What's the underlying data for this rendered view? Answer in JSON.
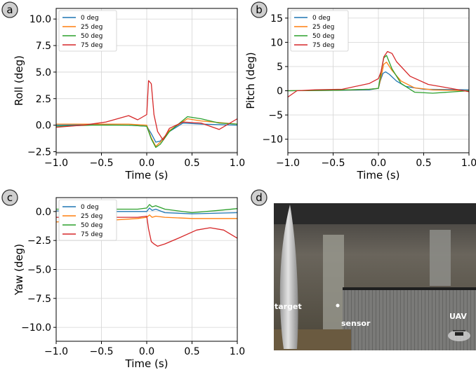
{
  "colors": {
    "blue": "#1f77b4",
    "orange": "#ff7f0e",
    "green": "#2ca02c",
    "red": "#d62728",
    "grid": "#d9d9d9"
  },
  "chart_data": [
    {
      "panel": "a",
      "type": "line",
      "xlabel": "Time (s)",
      "ylabel": "Roll (deg)",
      "xlim": [
        -1.0,
        1.0
      ],
      "ylim": [
        -2.6,
        11.0
      ],
      "xticks": [
        "−1.0",
        "−0.5",
        "0.0",
        "0.5",
        "1.0"
      ],
      "yticks": [
        "−2.5",
        "0.0",
        "2.5",
        "5.0",
        "7.5",
        "10.0"
      ],
      "grid": true,
      "legend": "top-left",
      "series": [
        {
          "name": "0 deg",
          "color": "#1f77b4",
          "x": [
            -1.0,
            -0.6,
            -0.2,
            0.0,
            0.05,
            0.1,
            0.15,
            0.25,
            0.4,
            0.6,
            1.0
          ],
          "y": [
            0.0,
            0.05,
            0.0,
            -0.1,
            -0.8,
            -1.6,
            -1.5,
            -0.6,
            0.2,
            0.1,
            0.0
          ]
        },
        {
          "name": "25 deg",
          "color": "#ff7f0e",
          "x": [
            -1.0,
            -0.6,
            -0.2,
            0.0,
            0.05,
            0.1,
            0.15,
            0.25,
            0.45,
            0.6,
            1.0
          ],
          "y": [
            0.1,
            0.1,
            0.1,
            0.0,
            -1.2,
            -2.0,
            -1.6,
            -0.5,
            0.6,
            0.4,
            0.1
          ]
        },
        {
          "name": "50 deg",
          "color": "#2ca02c",
          "x": [
            -1.0,
            -0.6,
            -0.2,
            0.0,
            0.05,
            0.1,
            0.15,
            0.25,
            0.45,
            0.6,
            0.8,
            1.0
          ],
          "y": [
            -0.1,
            0.0,
            0.0,
            -0.1,
            -1.3,
            -2.1,
            -1.8,
            -0.6,
            0.8,
            0.6,
            0.2,
            0.1
          ]
        },
        {
          "name": "75 deg",
          "color": "#d62728",
          "x": [
            -1.0,
            -0.7,
            -0.45,
            -0.2,
            -0.1,
            0.0,
            0.02,
            0.05,
            0.08,
            0.12,
            0.18,
            0.25,
            0.4,
            0.6,
            0.8,
            1.0
          ],
          "y": [
            -0.2,
            0.0,
            0.3,
            0.9,
            0.5,
            1.0,
            4.2,
            3.9,
            1.0,
            -0.6,
            -1.4,
            -0.3,
            0.3,
            0.2,
            -0.4,
            0.6
          ]
        }
      ]
    },
    {
      "panel": "b",
      "type": "line",
      "xlabel": "Time (s)",
      "ylabel": "Pitch (deg)",
      "xlim": [
        -1.0,
        1.0
      ],
      "ylim": [
        -12.8,
        17.0
      ],
      "xticks": [
        "−1.0",
        "−0.5",
        "0.0",
        "0.5",
        "1.0"
      ],
      "yticks": [
        "−10",
        "−5",
        "0",
        "5",
        "10",
        "15"
      ],
      "grid": true,
      "legend": "top-left",
      "series": [
        {
          "name": "0 deg",
          "color": "#1f77b4",
          "x": [
            -1.0,
            -0.5,
            -0.1,
            0.0,
            0.02,
            0.05,
            0.08,
            0.12,
            0.2,
            0.3,
            0.5,
            1.0
          ],
          "y": [
            0.0,
            0.1,
            0.2,
            0.5,
            2.0,
            3.6,
            3.9,
            3.4,
            2.0,
            0.9,
            0.3,
            0.2
          ]
        },
        {
          "name": "25 deg",
          "color": "#ff7f0e",
          "x": [
            -1.0,
            -0.5,
            -0.1,
            0.0,
            0.03,
            0.06,
            0.09,
            0.15,
            0.25,
            0.4,
            0.6,
            1.0
          ],
          "y": [
            0.0,
            0.1,
            0.3,
            0.5,
            3.0,
            5.5,
            5.9,
            4.2,
            2.0,
            0.6,
            0.2,
            0.0
          ]
        },
        {
          "name": "50 deg",
          "color": "#2ca02c",
          "x": [
            -1.0,
            -0.5,
            -0.1,
            0.0,
            0.03,
            0.06,
            0.09,
            0.15,
            0.25,
            0.4,
            0.6,
            1.0
          ],
          "y": [
            0.0,
            0.1,
            0.3,
            0.5,
            4.0,
            6.8,
            7.3,
            4.5,
            1.5,
            -0.3,
            -0.5,
            0.0
          ]
        },
        {
          "name": "75 deg",
          "color": "#d62728",
          "x": [
            -1.0,
            -0.9,
            -0.7,
            -0.4,
            -0.1,
            0.0,
            0.03,
            0.06,
            0.1,
            0.15,
            0.2,
            0.35,
            0.55,
            0.8,
            1.0
          ],
          "y": [
            -1.3,
            0.0,
            0.2,
            0.3,
            1.5,
            2.5,
            4.0,
            7.0,
            8.1,
            7.7,
            6.0,
            3.0,
            1.3,
            0.5,
            -0.2
          ]
        }
      ]
    },
    {
      "panel": "c",
      "type": "line",
      "xlabel": "Time (s)",
      "ylabel": "Yaw (deg)",
      "xlim": [
        -1.0,
        1.0
      ],
      "ylim": [
        -11.2,
        1.2
      ],
      "xticks": [
        "−1.0",
        "−0.5",
        "0.0",
        "0.5",
        "1.0"
      ],
      "yticks": [
        "0.0",
        "−2.5",
        "−5.0",
        "−7.5",
        "−10.0"
      ],
      "grid": true,
      "legend": "top-left",
      "series": [
        {
          "name": "0 deg",
          "color": "#1f77b4",
          "x": [
            -1.0,
            -0.5,
            -0.1,
            0.0,
            0.03,
            0.06,
            0.1,
            0.2,
            0.5,
            1.0
          ],
          "y": [
            0.05,
            0.0,
            0.0,
            0.0,
            0.3,
            0.1,
            0.2,
            -0.1,
            -0.2,
            -0.1
          ]
        },
        {
          "name": "25 deg",
          "color": "#ff7f0e",
          "x": [
            -1.0,
            -0.5,
            -0.1,
            0.0,
            0.03,
            0.06,
            0.1,
            0.2,
            0.5,
            1.0
          ],
          "y": [
            -0.9,
            -0.8,
            -0.6,
            -0.5,
            -0.3,
            -0.5,
            -0.4,
            -0.5,
            -0.6,
            -0.6
          ]
        },
        {
          "name": "50 deg",
          "color": "#2ca02c",
          "x": [
            -1.0,
            -0.5,
            -0.1,
            0.0,
            0.03,
            0.06,
            0.1,
            0.2,
            0.5,
            0.8,
            1.0
          ],
          "y": [
            0.2,
            0.2,
            0.2,
            0.3,
            0.6,
            0.4,
            0.5,
            0.2,
            -0.1,
            0.1,
            0.25
          ]
        },
        {
          "name": "75 deg",
          "color": "#d62728",
          "x": [
            -1.0,
            -0.5,
            -0.1,
            0.0,
            0.02,
            0.05,
            0.08,
            0.12,
            0.2,
            0.35,
            0.55,
            0.7,
            0.85,
            1.0
          ],
          "y": [
            -0.5,
            -0.5,
            -0.5,
            -0.4,
            -1.5,
            -2.6,
            -2.8,
            -3.0,
            -2.8,
            -2.3,
            -1.6,
            -1.4,
            -1.6,
            -2.3
          ]
        }
      ]
    }
  ],
  "panels": {
    "a": "a",
    "b": "b",
    "c": "c",
    "d": "d"
  },
  "photo": {
    "labels": {
      "target": "target",
      "sensor": "sensor",
      "uav": "UAV"
    }
  }
}
